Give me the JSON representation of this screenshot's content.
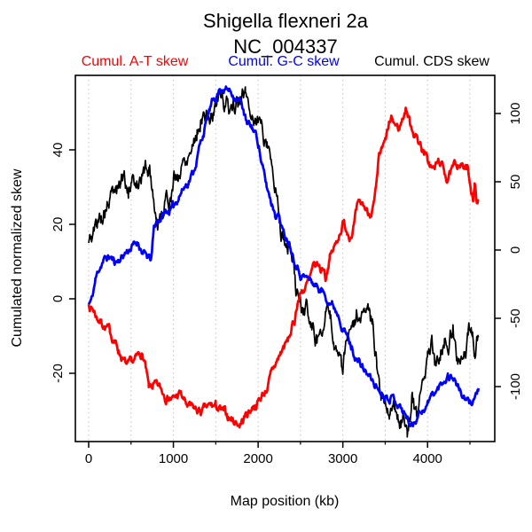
{
  "title": {
    "line1": "Shigella flexneri 2a",
    "line2": "NC_004337"
  },
  "chart_data": {
    "type": "line",
    "title": "Shigella flexneri 2a",
    "subtitle": "NC_004337",
    "xlabel": "Map position (kb)",
    "ylabel_left": "Cumulated normalized skew",
    "x_ticks_labeled": [
      0,
      1000,
      2000,
      3000,
      4000
    ],
    "x_ticks_minor": [
      500,
      1500,
      2500,
      3500,
      4500
    ],
    "gridlines_kb": [
      0,
      500,
      1000,
      1500,
      2000,
      2500,
      3000,
      3500,
      4000,
      4500
    ],
    "y_left_ticks": [
      -20,
      0,
      20,
      40
    ],
    "y_right_ticks": [
      -100,
      -50,
      0,
      50,
      100
    ],
    "xlim_kb": [
      0,
      4600
    ],
    "ylim_left": [
      -38,
      60
    ],
    "ylim_right": [
      -139,
      128
    ],
    "grid": "dotted-vertical",
    "legend_position": "top",
    "colors": {
      "at_skew": "#ff0000",
      "gc_skew": "#0000ff",
      "cds_skew": "#000000",
      "grid": "#c3c3c3"
    },
    "series": [
      {
        "name": "Cumul. A-T skew",
        "color": "#ff0000",
        "width": 2.7,
        "noise": 0.9,
        "seed": 7,
        "points": [
          [
            0,
            -1.5
          ],
          [
            60,
            -3
          ],
          [
            100,
            -5
          ],
          [
            150,
            -6
          ],
          [
            200,
            -7.5
          ],
          [
            250,
            -9
          ],
          [
            300,
            -11
          ],
          [
            350,
            -13.5
          ],
          [
            420,
            -17
          ],
          [
            460,
            -18.5
          ],
          [
            500,
            -18
          ],
          [
            560,
            -16.5
          ],
          [
            620,
            -14.5
          ],
          [
            660,
            -17
          ],
          [
            710,
            -24.5
          ],
          [
            760,
            -23.5
          ],
          [
            800,
            -24
          ],
          [
            850,
            -24.5
          ],
          [
            900,
            -25.5
          ],
          [
            950,
            -26
          ],
          [
            1000,
            -27
          ],
          [
            1080,
            -25.5
          ],
          [
            1150,
            -28.5
          ],
          [
            1200,
            -29.5
          ],
          [
            1260,
            -30
          ],
          [
            1330,
            -30.5
          ],
          [
            1400,
            -29.5
          ],
          [
            1450,
            -29
          ],
          [
            1500,
            -29
          ],
          [
            1550,
            -30
          ],
          [
            1600,
            -31
          ],
          [
            1700,
            -32.5
          ],
          [
            1780,
            -33.5
          ],
          [
            1820,
            -32.5
          ],
          [
            1860,
            -31
          ],
          [
            1900,
            -30
          ],
          [
            1950,
            -28.5
          ],
          [
            2000,
            -27.5
          ],
          [
            2060,
            -25.5
          ],
          [
            2100,
            -24
          ],
          [
            2150,
            -21
          ],
          [
            2200,
            -18
          ],
          [
            2250,
            -15.5
          ],
          [
            2300,
            -13
          ],
          [
            2350,
            -11.5
          ],
          [
            2400,
            -8
          ],
          [
            2430,
            -6
          ],
          [
            2465,
            -0.5
          ],
          [
            2500,
            1.5
          ],
          [
            2550,
            3
          ],
          [
            2600,
            4.5
          ],
          [
            2660,
            8
          ],
          [
            2700,
            9
          ],
          [
            2740,
            7.6
          ],
          [
            2775,
            8.8
          ],
          [
            2795,
            6
          ],
          [
            2845,
            11.2
          ],
          [
            2915,
            14.3
          ],
          [
            2970,
            18.5
          ],
          [
            3000,
            20.5
          ],
          [
            3050,
            18.5
          ],
          [
            3090,
            17.5
          ],
          [
            3130,
            20
          ],
          [
            3170,
            24
          ],
          [
            3240,
            25
          ],
          [
            3300,
            23
          ],
          [
            3340,
            24
          ],
          [
            3370,
            25.5
          ],
          [
            3400,
            30
          ],
          [
            3430,
            38
          ],
          [
            3470,
            40
          ],
          [
            3500,
            41.5
          ],
          [
            3545,
            46.5
          ],
          [
            3580,
            47.5
          ],
          [
            3620,
            46.5
          ],
          [
            3660,
            45.5
          ],
          [
            3700,
            48
          ],
          [
            3745,
            51.5
          ],
          [
            3790,
            47.5
          ],
          [
            3830,
            45.5
          ],
          [
            3880,
            43
          ],
          [
            3930,
            41
          ],
          [
            3960,
            39
          ],
          [
            4000,
            37
          ],
          [
            4040,
            35.5
          ],
          [
            4070,
            34.6
          ],
          [
            4140,
            37
          ],
          [
            4180,
            35
          ],
          [
            4230,
            32.6
          ],
          [
            4290,
            34
          ],
          [
            4330,
            35.5
          ],
          [
            4375,
            37
          ],
          [
            4430,
            35
          ],
          [
            4470,
            34.5
          ],
          [
            4510,
            30
          ],
          [
            4540,
            27.5
          ],
          [
            4555,
            30.5
          ],
          [
            4575,
            27
          ],
          [
            4600,
            26.3
          ]
        ]
      },
      {
        "name": "Cumul. G-C skew",
        "color": "#0000ff",
        "width": 2.7,
        "noise": 0.8,
        "seed": 11,
        "points": [
          [
            0,
            -1.5
          ],
          [
            40,
            0
          ],
          [
            80,
            5
          ],
          [
            120,
            8
          ],
          [
            160,
            10
          ],
          [
            200,
            10.8
          ],
          [
            250,
            11.2
          ],
          [
            300,
            10
          ],
          [
            350,
            10.4
          ],
          [
            400,
            11.6
          ],
          [
            450,
            12.8
          ],
          [
            490,
            13.6
          ],
          [
            530,
            14.3
          ],
          [
            585,
            15.3
          ],
          [
            640,
            12.4
          ],
          [
            700,
            10.8
          ],
          [
            740,
            10.5
          ],
          [
            770,
            18.7
          ],
          [
            800,
            20.7
          ],
          [
            855,
            21.9
          ],
          [
            900,
            23.1
          ],
          [
            950,
            23.8
          ],
          [
            1000,
            24.5
          ],
          [
            1065,
            27.9
          ],
          [
            1120,
            29.8
          ],
          [
            1170,
            31.4
          ],
          [
            1240,
            34.3
          ],
          [
            1300,
            40
          ],
          [
            1360,
            45
          ],
          [
            1420,
            50
          ],
          [
            1480,
            53.5
          ],
          [
            1540,
            56
          ],
          [
            1580,
            57
          ],
          [
            1620,
            56.5
          ],
          [
            1680,
            55.5
          ],
          [
            1760,
            54
          ],
          [
            1820,
            51.5
          ],
          [
            1870,
            46.5
          ],
          [
            1920,
            46
          ],
          [
            1960,
            45
          ],
          [
            2010,
            41.5
          ],
          [
            2040,
            36.5
          ],
          [
            2100,
            30
          ],
          [
            2150,
            26.5
          ],
          [
            2200,
            23.5
          ],
          [
            2250,
            22.5
          ],
          [
            2300,
            17.5
          ],
          [
            2360,
            16
          ],
          [
            2430,
            11.2
          ],
          [
            2500,
            7
          ],
          [
            2570,
            5.7
          ],
          [
            2640,
            4.5
          ],
          [
            2740,
            2.4
          ],
          [
            2845,
            -0.3
          ],
          [
            2950,
            -3.9
          ],
          [
            3000,
            -7
          ],
          [
            3100,
            -13
          ],
          [
            3160,
            -16
          ],
          [
            3210,
            -17.8
          ],
          [
            3280,
            -20
          ],
          [
            3350,
            -22.1
          ],
          [
            3430,
            -24.5
          ],
          [
            3490,
            -25.7
          ],
          [
            3560,
            -25.7
          ],
          [
            3640,
            -27.5
          ],
          [
            3700,
            -29.7
          ],
          [
            3770,
            -32.5
          ],
          [
            3820,
            -34
          ],
          [
            3870,
            -31.5
          ],
          [
            3910,
            -30
          ],
          [
            3980,
            -29
          ],
          [
            4050,
            -26
          ],
          [
            4120,
            -24.5
          ],
          [
            4190,
            -21.7
          ],
          [
            4240,
            -20.3
          ],
          [
            4310,
            -21
          ],
          [
            4380,
            -24.5
          ],
          [
            4450,
            -27.7
          ],
          [
            4500,
            -28.1
          ],
          [
            4555,
            -26.4
          ],
          [
            4600,
            -24
          ]
        ]
      },
      {
        "name": "Cumul. CDS skew",
        "color": "#000000",
        "width": 1.7,
        "noise": 2.0,
        "seed": 5,
        "points": [
          [
            0,
            15
          ],
          [
            50,
            17
          ],
          [
            100,
            20
          ],
          [
            150,
            22.5
          ],
          [
            190,
            24.3
          ],
          [
            260,
            26.7
          ],
          [
            330,
            29
          ],
          [
            380,
            31.5
          ],
          [
            420,
            34.3
          ],
          [
            470,
            28.5
          ],
          [
            500,
            28.3
          ],
          [
            540,
            30.5
          ],
          [
            575,
            32.6
          ],
          [
            620,
            33.5
          ],
          [
            670,
            35
          ],
          [
            720,
            35.5
          ],
          [
            760,
            28
          ],
          [
            800,
            22.4
          ],
          [
            820,
            20
          ],
          [
            860,
            23
          ],
          [
            890,
            25.5
          ],
          [
            950,
            27.5
          ],
          [
            1000,
            31
          ],
          [
            1065,
            33.5
          ],
          [
            1120,
            36.5
          ],
          [
            1170,
            39.5
          ],
          [
            1220,
            42
          ],
          [
            1280,
            46
          ],
          [
            1340,
            50
          ],
          [
            1400,
            48.5
          ],
          [
            1470,
            49.5
          ],
          [
            1540,
            55.5
          ],
          [
            1580,
            54
          ],
          [
            1620,
            52
          ],
          [
            1660,
            51
          ],
          [
            1700,
            53
          ],
          [
            1740,
            51.5
          ],
          [
            1800,
            52.5
          ],
          [
            1850,
            55
          ],
          [
            1900,
            52
          ],
          [
            1950,
            49
          ],
          [
            2010,
            48
          ],
          [
            2070,
            44.5
          ],
          [
            2140,
            41
          ],
          [
            2200,
            30
          ],
          [
            2250,
            22
          ],
          [
            2300,
            16
          ],
          [
            2360,
            14
          ],
          [
            2400,
            10
          ],
          [
            2440,
            3
          ],
          [
            2470,
            -0.5
          ],
          [
            2510,
            -2.5
          ],
          [
            2540,
            -4.5
          ],
          [
            2575,
            -2.5
          ],
          [
            2620,
            -6.5
          ],
          [
            2660,
            -9
          ],
          [
            2700,
            -11
          ],
          [
            2760,
            -4.5
          ],
          [
            2800,
            -2.5
          ],
          [
            2850,
            -7
          ],
          [
            2890,
            -10.5
          ],
          [
            2950,
            -14.5
          ],
          [
            3000,
            -19.5
          ],
          [
            3040,
            -13
          ],
          [
            3100,
            -7.5
          ],
          [
            3160,
            -5.5
          ],
          [
            3230,
            -4.5
          ],
          [
            3290,
            -7
          ],
          [
            3350,
            -8.5
          ],
          [
            3400,
            -16
          ],
          [
            3450,
            -24.5
          ],
          [
            3500,
            -26
          ],
          [
            3550,
            -29
          ],
          [
            3600,
            -28
          ],
          [
            3650,
            -31
          ],
          [
            3710,
            -33
          ],
          [
            3760,
            -34.3
          ],
          [
            3800,
            -30
          ],
          [
            3820,
            -24.5
          ],
          [
            3845,
            -28
          ],
          [
            3870,
            -32
          ],
          [
            3910,
            -28
          ],
          [
            3950,
            -20
          ],
          [
            4000,
            -14.5
          ],
          [
            4050,
            -13
          ],
          [
            4100,
            -18.5
          ],
          [
            4160,
            -11.5
          ],
          [
            4200,
            -10.5
          ],
          [
            4240,
            -10
          ],
          [
            4300,
            -8.3
          ],
          [
            4350,
            -17
          ],
          [
            4390,
            -15
          ],
          [
            4430,
            -14
          ],
          [
            4480,
            -10.5
          ],
          [
            4530,
            -8.5
          ],
          [
            4560,
            -13.5
          ],
          [
            4600,
            -10.3
          ]
        ]
      }
    ]
  }
}
